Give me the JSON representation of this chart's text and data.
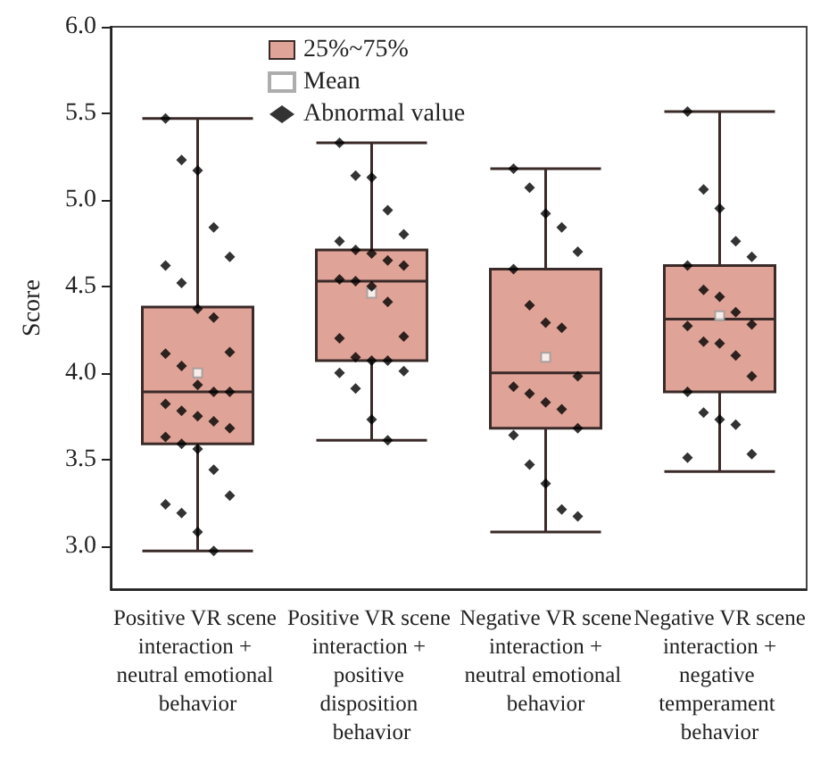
{
  "chart_data": {
    "type": "box",
    "ylabel": "Score",
    "categories": [
      "Positive VR scene interaction + neutral emotional behavior",
      "Positive VR scene interaction + positive disposition behavior",
      "Negative VR scene interaction + neutral emotional behavior",
      "Negative VR scene interaction + negative temperament behavior"
    ],
    "ylim": [
      2.75,
      6.0
    ],
    "yticks": [
      {
        "value": 3,
        "label": "3.0"
      },
      {
        "value": 3.5,
        "label": "3.5"
      },
      {
        "value": 4,
        "label": "4.0"
      },
      {
        "value": 4.5,
        "label": "4.5"
      },
      {
        "value": 5,
        "label": "5.0"
      },
      {
        "value": 5.5,
        "label": "5.5"
      },
      {
        "value": 6,
        "label": "6.0"
      }
    ],
    "grid": false,
    "legend": "top left",
    "series": [
      {
        "name": "25%~75%",
        "color": "#e0a398",
        "boxes": [
          {
            "low": 2.97,
            "q1": 3.59,
            "median": 3.89,
            "q3": 4.38,
            "high": 5.47
          },
          {
            "low": 3.61,
            "q1": 4.07,
            "median": 4.53,
            "q3": 4.71,
            "high": 5.33
          },
          {
            "low": 3.08,
            "q1": 3.68,
            "median": 4.0,
            "q3": 4.6,
            "high": 5.18
          },
          {
            "low": 3.43,
            "q1": 3.89,
            "median": 4.31,
            "q3": 4.62,
            "high": 5.51
          }
        ]
      },
      {
        "name": "Mean",
        "type": "scatter",
        "marker": "square",
        "color": "#999999",
        "x": [
          "Positive VR scene interaction + neutral emotional behavior",
          "Positive VR scene interaction + positive disposition behavior",
          "Negative VR scene interaction + neutral emotional behavior",
          "Negative VR scene interaction + negative temperament behavior"
        ],
        "values": [
          4.0,
          4.46,
          4.09,
          4.33
        ]
      },
      {
        "name": "Abnormal value",
        "type": "scatter",
        "marker": "diamond",
        "color": "#000000",
        "x": [
          "Positive VR scene interaction + neutral emotional behavior",
          "Positive VR scene interaction + neutral emotional behavior",
          "Positive VR scene interaction + neutral emotional behavior",
          "Positive VR scene interaction + neutral emotional behavior",
          "Positive VR scene interaction + neutral emotional behavior",
          "Positive VR scene interaction + neutral emotional behavior",
          "Positive VR scene interaction + neutral emotional behavior",
          "Positive VR scene interaction + neutral emotional behavior",
          "Positive VR scene interaction + neutral emotional behavior",
          "Positive VR scene interaction + neutral emotional behavior",
          "Positive VR scene interaction + neutral emotional behavior",
          "Positive VR scene interaction + neutral emotional behavior",
          "Positive VR scene interaction + neutral emotional behavior",
          "Positive VR scene interaction + neutral emotional behavior",
          "Positive VR scene interaction + neutral emotional behavior",
          "Positive VR scene interaction + neutral emotional behavior",
          "Positive VR scene interaction + neutral emotional behavior",
          "Positive VR scene interaction + neutral emotional behavior",
          "Positive VR scene interaction + neutral emotional behavior",
          "Positive VR scene interaction + neutral emotional behavior",
          "Positive VR scene interaction + neutral emotional behavior",
          "Positive VR scene interaction + neutral emotional behavior",
          "Positive VR scene interaction + neutral emotional behavior",
          "Positive VR scene interaction + neutral emotional behavior",
          "Positive VR scene interaction + neutral emotional behavior",
          "Positive VR scene interaction + neutral emotional behavior",
          "Positive VR scene interaction + neutral emotional behavior",
          "Positive VR scene interaction + neutral emotional behavior",
          "Positive VR scene interaction + neutral emotional behavior",
          "Positive VR scene interaction + positive disposition behavior",
          "Positive VR scene interaction + positive disposition behavior",
          "Positive VR scene interaction + positive disposition behavior",
          "Positive VR scene interaction + positive disposition behavior",
          "Positive VR scene interaction + positive disposition behavior",
          "Positive VR scene interaction + positive disposition behavior",
          "Positive VR scene interaction + positive disposition behavior",
          "Positive VR scene interaction + positive disposition behavior",
          "Positive VR scene interaction + positive disposition behavior",
          "Positive VR scene interaction + positive disposition behavior",
          "Positive VR scene interaction + positive disposition behavior",
          "Positive VR scene interaction + positive disposition behavior",
          "Positive VR scene interaction + positive disposition behavior",
          "Positive VR scene interaction + positive disposition behavior",
          "Positive VR scene interaction + positive disposition behavior",
          "Positive VR scene interaction + positive disposition behavior",
          "Positive VR scene interaction + positive disposition behavior",
          "Positive VR scene interaction + positive disposition behavior",
          "Positive VR scene interaction + positive disposition behavior",
          "Positive VR scene interaction + positive disposition behavior",
          "Positive VR scene interaction + positive disposition behavior",
          "Positive VR scene interaction + positive disposition behavior",
          "Positive VR scene interaction + positive disposition behavior",
          "Positive VR scene interaction + positive disposition behavior",
          "Negative VR scene interaction + neutral emotional behavior",
          "Negative VR scene interaction + neutral emotional behavior",
          "Negative VR scene interaction + neutral emotional behavior",
          "Negative VR scene interaction + neutral emotional behavior",
          "Negative VR scene interaction + neutral emotional behavior",
          "Negative VR scene interaction + neutral emotional behavior",
          "Negative VR scene interaction + neutral emotional behavior",
          "Negative VR scene interaction + neutral emotional behavior",
          "Negative VR scene interaction + neutral emotional behavior",
          "Negative VR scene interaction + neutral emotional behavior",
          "Negative VR scene interaction + neutral emotional behavior",
          "Negative VR scene interaction + neutral emotional behavior",
          "Negative VR scene interaction + neutral emotional behavior",
          "Negative VR scene interaction + neutral emotional behavior",
          "Negative VR scene interaction + neutral emotional behavior",
          "Negative VR scene interaction + neutral emotional behavior",
          "Negative VR scene interaction + neutral emotional behavior",
          "Negative VR scene interaction + neutral emotional behavior",
          "Negative VR scene interaction + neutral emotional behavior",
          "Negative VR scene interaction + neutral emotional behavior",
          "Negative VR scene interaction + negative temperament behavior",
          "Negative VR scene interaction + negative temperament behavior",
          "Negative VR scene interaction + negative temperament behavior",
          "Negative VR scene interaction + negative temperament behavior",
          "Negative VR scene interaction + negative temperament behavior",
          "Negative VR scene interaction + negative temperament behavior",
          "Negative VR scene interaction + negative temperament behavior",
          "Negative VR scene interaction + negative temperament behavior",
          "Negative VR scene interaction + negative temperament behavior",
          "Negative VR scene interaction + negative temperament behavior",
          "Negative VR scene interaction + negative temperament behavior",
          "Negative VR scene interaction + negative temperament behavior",
          "Negative VR scene interaction + negative temperament behavior",
          "Negative VR scene interaction + negative temperament behavior",
          "Negative VR scene interaction + negative temperament behavior",
          "Negative VR scene interaction + negative temperament behavior",
          "Negative VR scene interaction + negative temperament behavior",
          "Negative VR scene interaction + negative temperament behavior",
          "Negative VR scene interaction + negative temperament behavior",
          "Negative VR scene interaction + negative temperament behavior",
          "Negative VR scene interaction + negative temperament behavior"
        ],
        "values": [
          5.47,
          5.23,
          5.17,
          4.84,
          4.67,
          4.62,
          4.52,
          4.37,
          4.32,
          4.12,
          4.11,
          4.04,
          3.93,
          3.89,
          3.89,
          3.82,
          3.78,
          3.75,
          3.72,
          3.68,
          3.63,
          3.59,
          3.56,
          3.44,
          3.29,
          3.24,
          3.19,
          3.08,
          2.97,
          5.33,
          5.14,
          5.13,
          4.94,
          4.8,
          4.76,
          4.71,
          4.69,
          4.65,
          4.62,
          4.54,
          4.53,
          4.5,
          4.41,
          4.21,
          4.2,
          4.09,
          4.07,
          4.07,
          4.01,
          4.0,
          3.91,
          3.73,
          3.61,
          5.18,
          5.07,
          4.92,
          4.84,
          4.7,
          4.6,
          4.39,
          4.29,
          4.26,
          3.98,
          3.92,
          3.88,
          3.83,
          3.79,
          3.68,
          3.64,
          3.47,
          3.36,
          3.21,
          3.17,
          5.51,
          5.06,
          4.95,
          4.76,
          4.67,
          4.62,
          4.48,
          4.44,
          4.35,
          4.28,
          4.27,
          4.18,
          4.17,
          4.1,
          3.98,
          3.89,
          3.77,
          3.73,
          3.7,
          3.53,
          3.51
        ]
      }
    ]
  }
}
